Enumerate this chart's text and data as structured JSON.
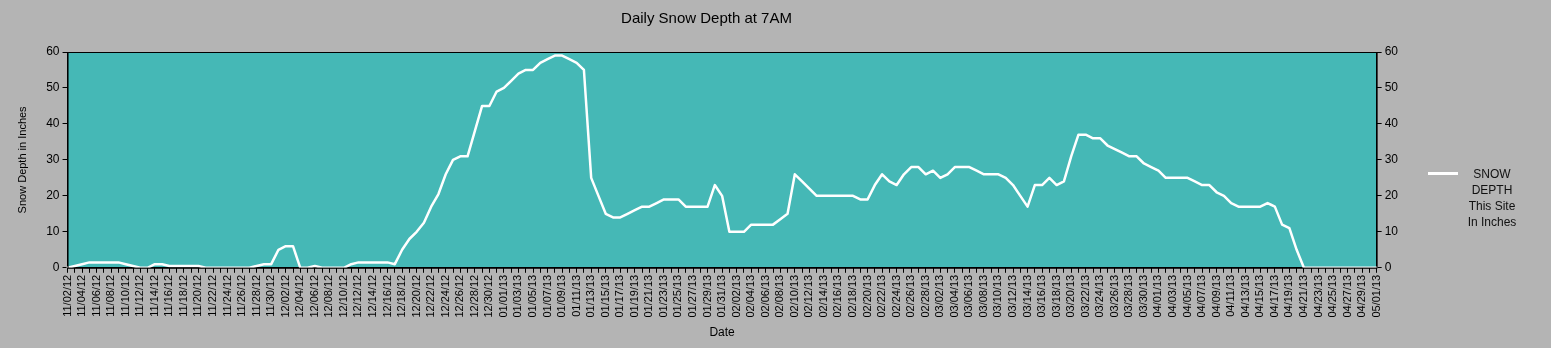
{
  "chart_data": {
    "type": "line",
    "title": "Daily Snow Depth at 7AM",
    "xlabel": "Date",
    "ylabel": "Snow Depth in Inches",
    "categories": [
      "11/02/12",
      null,
      "11/04/12",
      null,
      "11/06/12",
      null,
      "11/08/12",
      null,
      "11/10/12",
      null,
      "11/12/12",
      null,
      "11/14/12",
      null,
      "11/16/12",
      null,
      "11/18/12",
      null,
      "11/20/12",
      null,
      "11/22/12",
      null,
      "11/24/12",
      null,
      "11/26/12",
      null,
      "11/28/12",
      null,
      "11/30/12",
      null,
      "12/02/12",
      null,
      "12/04/12",
      null,
      "12/06/12",
      null,
      "12/08/12",
      null,
      "12/10/12",
      null,
      "12/12/12",
      null,
      "12/14/12",
      null,
      "12/16/12",
      null,
      "12/18/12",
      null,
      "12/20/12",
      null,
      "12/22/12",
      null,
      "12/24/12",
      null,
      "12/26/12",
      null,
      "12/28/12",
      null,
      "12/30/12",
      null,
      "01/01/13",
      null,
      "01/03/13",
      null,
      "01/05/13",
      null,
      "01/07/13",
      null,
      "01/09/13",
      null,
      "01/11/13",
      null,
      "01/13/13",
      null,
      "01/15/13",
      null,
      "01/17/13",
      null,
      "01/19/13",
      null,
      "01/21/13",
      null,
      "01/23/13",
      null,
      "01/25/13",
      null,
      "01/27/13",
      null,
      "01/29/13",
      null,
      "01/31/13",
      null,
      "02/02/13",
      null,
      "02/04/13",
      null,
      "02/06/13",
      null,
      "02/08/13",
      null,
      "02/10/13",
      null,
      "02/12/13",
      null,
      "02/14/13",
      null,
      "02/16/13",
      null,
      "02/18/13",
      null,
      "02/20/13",
      null,
      "02/22/13",
      null,
      "02/24/13",
      null,
      "02/26/13",
      null,
      "02/28/13",
      null,
      "03/02/13",
      null,
      "03/04/13",
      null,
      "03/06/13",
      null,
      "03/08/13",
      null,
      "03/10/13",
      null,
      "03/12/13",
      null,
      "03/14/13",
      null,
      "03/16/13",
      null,
      "03/18/13",
      null,
      "03/20/13",
      null,
      "03/22/13",
      null,
      "03/24/13",
      null,
      "03/26/13",
      null,
      "03/28/13",
      null,
      "03/30/13",
      null,
      "04/01/13",
      null,
      "04/03/13",
      null,
      "04/05/13",
      null,
      "04/07/13",
      null,
      "04/09/13",
      null,
      "04/11/13",
      null,
      "04/13/13",
      null,
      "04/15/13",
      null,
      "04/17/13",
      null,
      "04/19/13",
      null,
      "04/21/13",
      null,
      "04/23/13",
      null,
      "04/25/13",
      null,
      "04/27/13",
      null,
      "04/29/13",
      null,
      "05/01/13"
    ],
    "series": [
      {
        "name": "SNOW DEPTH This Site In Inches",
        "color": "#ffffff",
        "values": [
          0,
          0.5,
          1,
          1.5,
          1.5,
          1.5,
          1.5,
          1.5,
          1,
          0.5,
          0,
          0,
          1,
          1,
          0.5,
          0.5,
          0.5,
          0.5,
          0.5,
          0,
          0,
          0,
          0,
          0,
          0,
          0,
          0.5,
          1,
          1,
          5,
          6,
          6,
          0,
          0,
          0.5,
          0,
          0,
          0,
          0,
          1,
          1.5,
          1.5,
          1.5,
          1.5,
          1.5,
          1,
          5,
          8,
          10,
          12.5,
          17,
          20.5,
          26,
          30,
          31,
          31,
          38,
          45,
          45,
          49,
          50,
          52,
          54,
          55,
          55,
          57,
          58,
          59,
          59,
          58,
          57,
          55,
          25,
          20,
          15,
          14,
          14,
          15,
          16,
          17,
          17,
          18,
          19,
          19,
          19,
          17,
          17,
          17,
          17,
          23,
          20,
          10,
          10,
          10,
          12,
          12,
          12,
          12,
          13.5,
          15,
          26,
          24,
          22,
          20,
          20,
          20,
          20,
          20,
          20,
          19,
          19,
          23,
          26,
          24,
          23,
          26,
          28,
          28,
          26,
          27,
          25,
          26,
          28,
          28,
          28,
          27,
          26,
          26,
          26,
          25,
          23,
          20,
          17,
          23,
          23,
          25,
          23,
          24,
          31,
          37,
          37,
          36,
          36,
          34,
          33,
          32,
          31,
          31,
          29,
          28,
          27,
          25,
          25,
          25,
          25,
          24,
          23,
          23,
          21,
          20,
          18,
          17,
          17,
          17,
          17,
          18,
          17,
          12,
          11,
          5,
          0,
          0,
          0,
          0,
          0,
          0,
          0,
          0,
          0,
          0,
          0
        ]
      }
    ],
    "ylim": [
      0,
      60
    ],
    "yticks": [
      0,
      10,
      20,
      30,
      40,
      50,
      60
    ],
    "y2lim": [
      0,
      60
    ],
    "y2ticks": [
      0,
      10,
      20,
      30,
      40,
      50,
      60
    ],
    "grid": false,
    "legend": "right",
    "marker": "none",
    "line_style": "solid"
  }
}
